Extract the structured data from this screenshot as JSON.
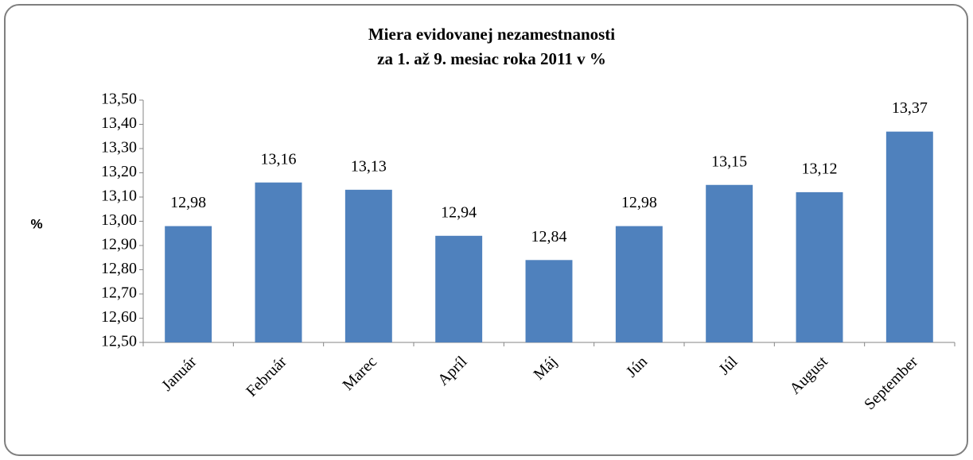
{
  "chart_data": {
    "type": "bar",
    "title": [
      "Miera evidovanej  nezamestnanosti",
      "za 1. až 9. mesiac roka 2011  v %"
    ],
    "y_label": "%",
    "categories": [
      "Január",
      "Február",
      "Marec",
      "Apríl",
      "Máj",
      "Jún",
      "Júl",
      "August",
      "September"
    ],
    "values": [
      12.98,
      13.16,
      13.13,
      12.94,
      12.84,
      12.98,
      13.15,
      13.12,
      13.37
    ],
    "value_labels": [
      "12,98",
      "13,16",
      "13,13",
      "12,94",
      "12,84",
      "12,98",
      "13,15",
      "13,12",
      "13,37"
    ],
    "color": "#4f81bd",
    "ylim": [
      12.5,
      13.5
    ],
    "yticks": [
      {
        "value": 12.5,
        "label": "12,50"
      },
      {
        "value": 12.6,
        "label": "12,60"
      },
      {
        "value": 12.7,
        "label": "12,70"
      },
      {
        "value": 12.8,
        "label": "12,80"
      },
      {
        "value": 12.9,
        "label": "12,90"
      },
      {
        "value": 13.0,
        "label": "13,00"
      },
      {
        "value": 13.1,
        "label": "13,10"
      },
      {
        "value": 13.2,
        "label": "13,20"
      },
      {
        "value": 13.3,
        "label": "13,30"
      },
      {
        "value": 13.4,
        "label": "13,40"
      },
      {
        "value": 13.5,
        "label": "13,50"
      }
    ],
    "grid": false
  }
}
